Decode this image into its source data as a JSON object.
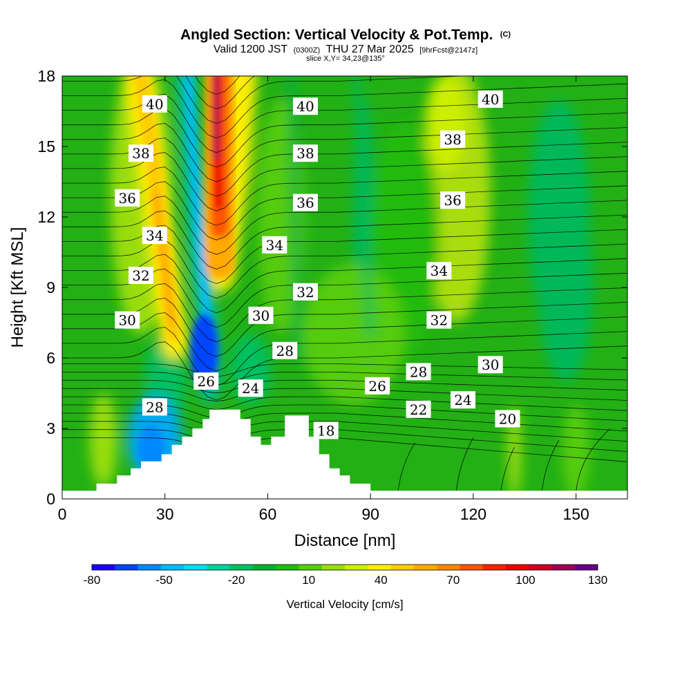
{
  "chart_data": {
    "type": "heatmap",
    "title": "Angled Section: Vertical Velocity & Pot.Temp.",
    "title_unit": "(C)",
    "subtitle": {
      "valid": "Valid 1200 JST",
      "utc": "(0300Z)",
      "date": "THU 27 Mar 2025",
      "fcst": "[9hrFcst@2147z]"
    },
    "slice_note": "slice X,Y= 34,23@135°",
    "xlabel": "Distance [nm]",
    "ylabel": "Height [Kft MSL]",
    "xlim": [
      0,
      165
    ],
    "ylim": [
      0,
      18
    ],
    "x_ticks": [
      "0",
      "30",
      "60",
      "90",
      "120",
      "150"
    ],
    "y_ticks": [
      "0",
      "3",
      "6",
      "9",
      "12",
      "15",
      "18"
    ],
    "colorbar": {
      "label": "Vertical Velocity [cm/s]",
      "tick_labels": [
        "-80",
        "-50",
        "-20",
        "10",
        "40",
        "70",
        "100",
        "130"
      ],
      "colors": [
        "#1a00ff",
        "#0044ff",
        "#0088ff",
        "#00bbff",
        "#00ddee",
        "#00d0a0",
        "#00c060",
        "#00b030",
        "#22bb11",
        "#55cc11",
        "#99dd11",
        "#ccee00",
        "#ffee00",
        "#ffcc00",
        "#ffaa00",
        "#ff8800",
        "#ff5500",
        "#ff2200",
        "#ee0000",
        "#cc0022",
        "#990055",
        "#660088"
      ]
    },
    "velocity_features": [
      {
        "kind": "updraft",
        "x": 45,
        "y": 15.5,
        "peak_cm_s": 130
      },
      {
        "kind": "updraft",
        "x": 30,
        "y": 10,
        "peak_cm_s": 50
      },
      {
        "kind": "downdraft",
        "x": 42,
        "y": 6,
        "peak_cm_s": -70
      },
      {
        "kind": "downdraft",
        "x": 28,
        "y": 2.5,
        "peak_cm_s": -45
      }
    ],
    "contour_labels": [
      {
        "text": "40",
        "x": 27,
        "y": 16.8
      },
      {
        "text": "38",
        "x": 23,
        "y": 14.7
      },
      {
        "text": "36",
        "x": 19,
        "y": 12.8
      },
      {
        "text": "34",
        "x": 27,
        "y": 11.2
      },
      {
        "text": "32",
        "x": 23,
        "y": 9.5
      },
      {
        "text": "30",
        "x": 19,
        "y": 7.6
      },
      {
        "text": "28",
        "x": 27,
        "y": 3.9
      },
      {
        "text": "26",
        "x": 42,
        "y": 5.0
      },
      {
        "text": "24",
        "x": 55,
        "y": 4.7
      },
      {
        "text": "40",
        "x": 71,
        "y": 16.7
      },
      {
        "text": "38",
        "x": 71,
        "y": 14.7
      },
      {
        "text": "36",
        "x": 71,
        "y": 12.6
      },
      {
        "text": "34",
        "x": 62,
        "y": 10.8
      },
      {
        "text": "32",
        "x": 71,
        "y": 8.8
      },
      {
        "text": "30",
        "x": 58,
        "y": 7.8
      },
      {
        "text": "28",
        "x": 65,
        "y": 6.3
      },
      {
        "text": "26",
        "x": 92,
        "y": 4.8
      },
      {
        "text": "18",
        "x": 77,
        "y": 2.9
      },
      {
        "text": "28",
        "x": 104,
        "y": 5.4
      },
      {
        "text": "22",
        "x": 104,
        "y": 3.8
      },
      {
        "text": "24",
        "x": 117,
        "y": 4.2
      },
      {
        "text": "20",
        "x": 130,
        "y": 3.4
      },
      {
        "text": "30",
        "x": 125,
        "y": 5.7
      },
      {
        "text": "32",
        "x": 110,
        "y": 7.6
      },
      {
        "text": "34",
        "x": 110,
        "y": 9.7
      },
      {
        "text": "36",
        "x": 114,
        "y": 12.7
      },
      {
        "text": "38",
        "x": 114,
        "y": 15.3
      },
      {
        "text": "40",
        "x": 125,
        "y": 17.0
      }
    ],
    "terrain_top_kft": [
      [
        0,
        0.35
      ],
      [
        10,
        0.35
      ],
      [
        10,
        0.65
      ],
      [
        16,
        0.65
      ],
      [
        16,
        1.0
      ],
      [
        20,
        1.0
      ],
      [
        20,
        1.3
      ],
      [
        23,
        1.3
      ],
      [
        23,
        1.6
      ],
      [
        29,
        1.6
      ],
      [
        29,
        1.9
      ],
      [
        32,
        1.9
      ],
      [
        32,
        2.3
      ],
      [
        35,
        2.3
      ],
      [
        35,
        2.65
      ],
      [
        38,
        2.65
      ],
      [
        38,
        3.0
      ],
      [
        41,
        3.0
      ],
      [
        41,
        3.4
      ],
      [
        43,
        3.4
      ],
      [
        43,
        3.8
      ],
      [
        52,
        3.8
      ],
      [
        52,
        3.4
      ],
      [
        55,
        3.4
      ],
      [
        55,
        2.65
      ],
      [
        58,
        2.65
      ],
      [
        58,
        2.3
      ],
      [
        61,
        2.3
      ],
      [
        61,
        2.65
      ],
      [
        65,
        2.65
      ],
      [
        65,
        3.55
      ],
      [
        72,
        3.55
      ],
      [
        72,
        2.65
      ],
      [
        75,
        2.65
      ],
      [
        75,
        1.9
      ],
      [
        78,
        1.9
      ],
      [
        78,
        1.3
      ],
      [
        81,
        1.3
      ],
      [
        81,
        1.0
      ],
      [
        84,
        1.0
      ],
      [
        84,
        0.65
      ],
      [
        90,
        0.65
      ],
      [
        90,
        0.35
      ],
      [
        165,
        0.35
      ]
    ]
  }
}
